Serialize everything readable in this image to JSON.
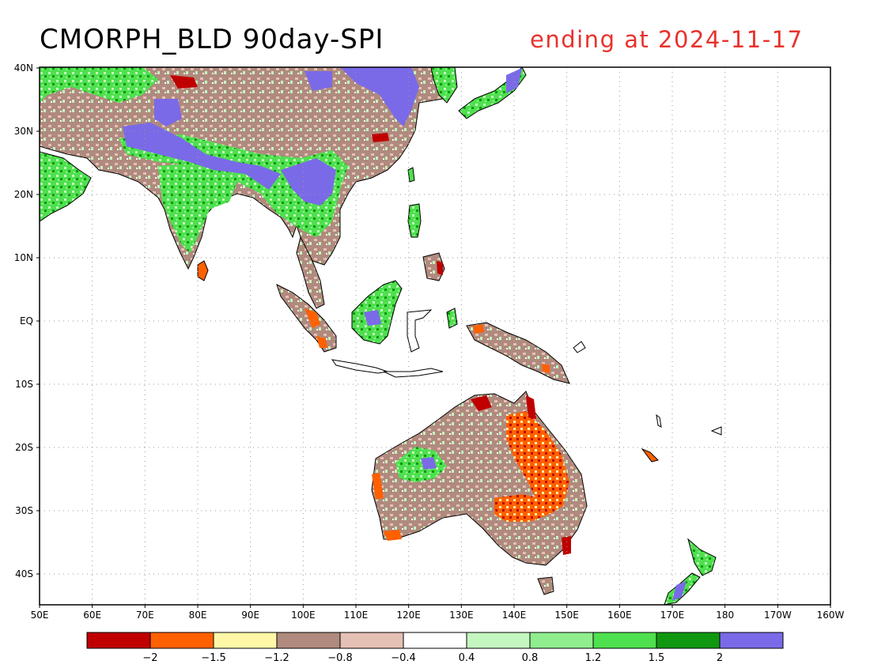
{
  "title": "CMORPH_BLD 90day-SPI",
  "subtitle": "ending at 2024-11-17",
  "lat_ticks": [
    "40N",
    "30N",
    "20N",
    "10N",
    "EQ",
    "10S",
    "20S",
    "30S",
    "40S"
  ],
  "lon_ticks": [
    "50E",
    "60E",
    "70E",
    "80E",
    "90E",
    "100E",
    "110E",
    "120E",
    "130E",
    "140E",
    "150E",
    "160E",
    "170E",
    "180",
    "170W",
    "160W"
  ],
  "colorbar": {
    "colors": [
      "#c00000",
      "#ff6000",
      "#fff7a8",
      "#b08a7e",
      "#e5c0b4",
      "#ffffff",
      "#c4f7c0",
      "#90ee8e",
      "#4ee04e",
      "#109810",
      "#7a6ae8"
    ],
    "labels": [
      "-2",
      "-1.5",
      "-1.2",
      "-0.8",
      "-0.4",
      "0.4",
      "0.8",
      "1.2",
      "1.5",
      "2"
    ]
  },
  "colors": {
    "land_default": "#e5c0b4",
    "coast": "#000000",
    "grid": "#999999"
  }
}
